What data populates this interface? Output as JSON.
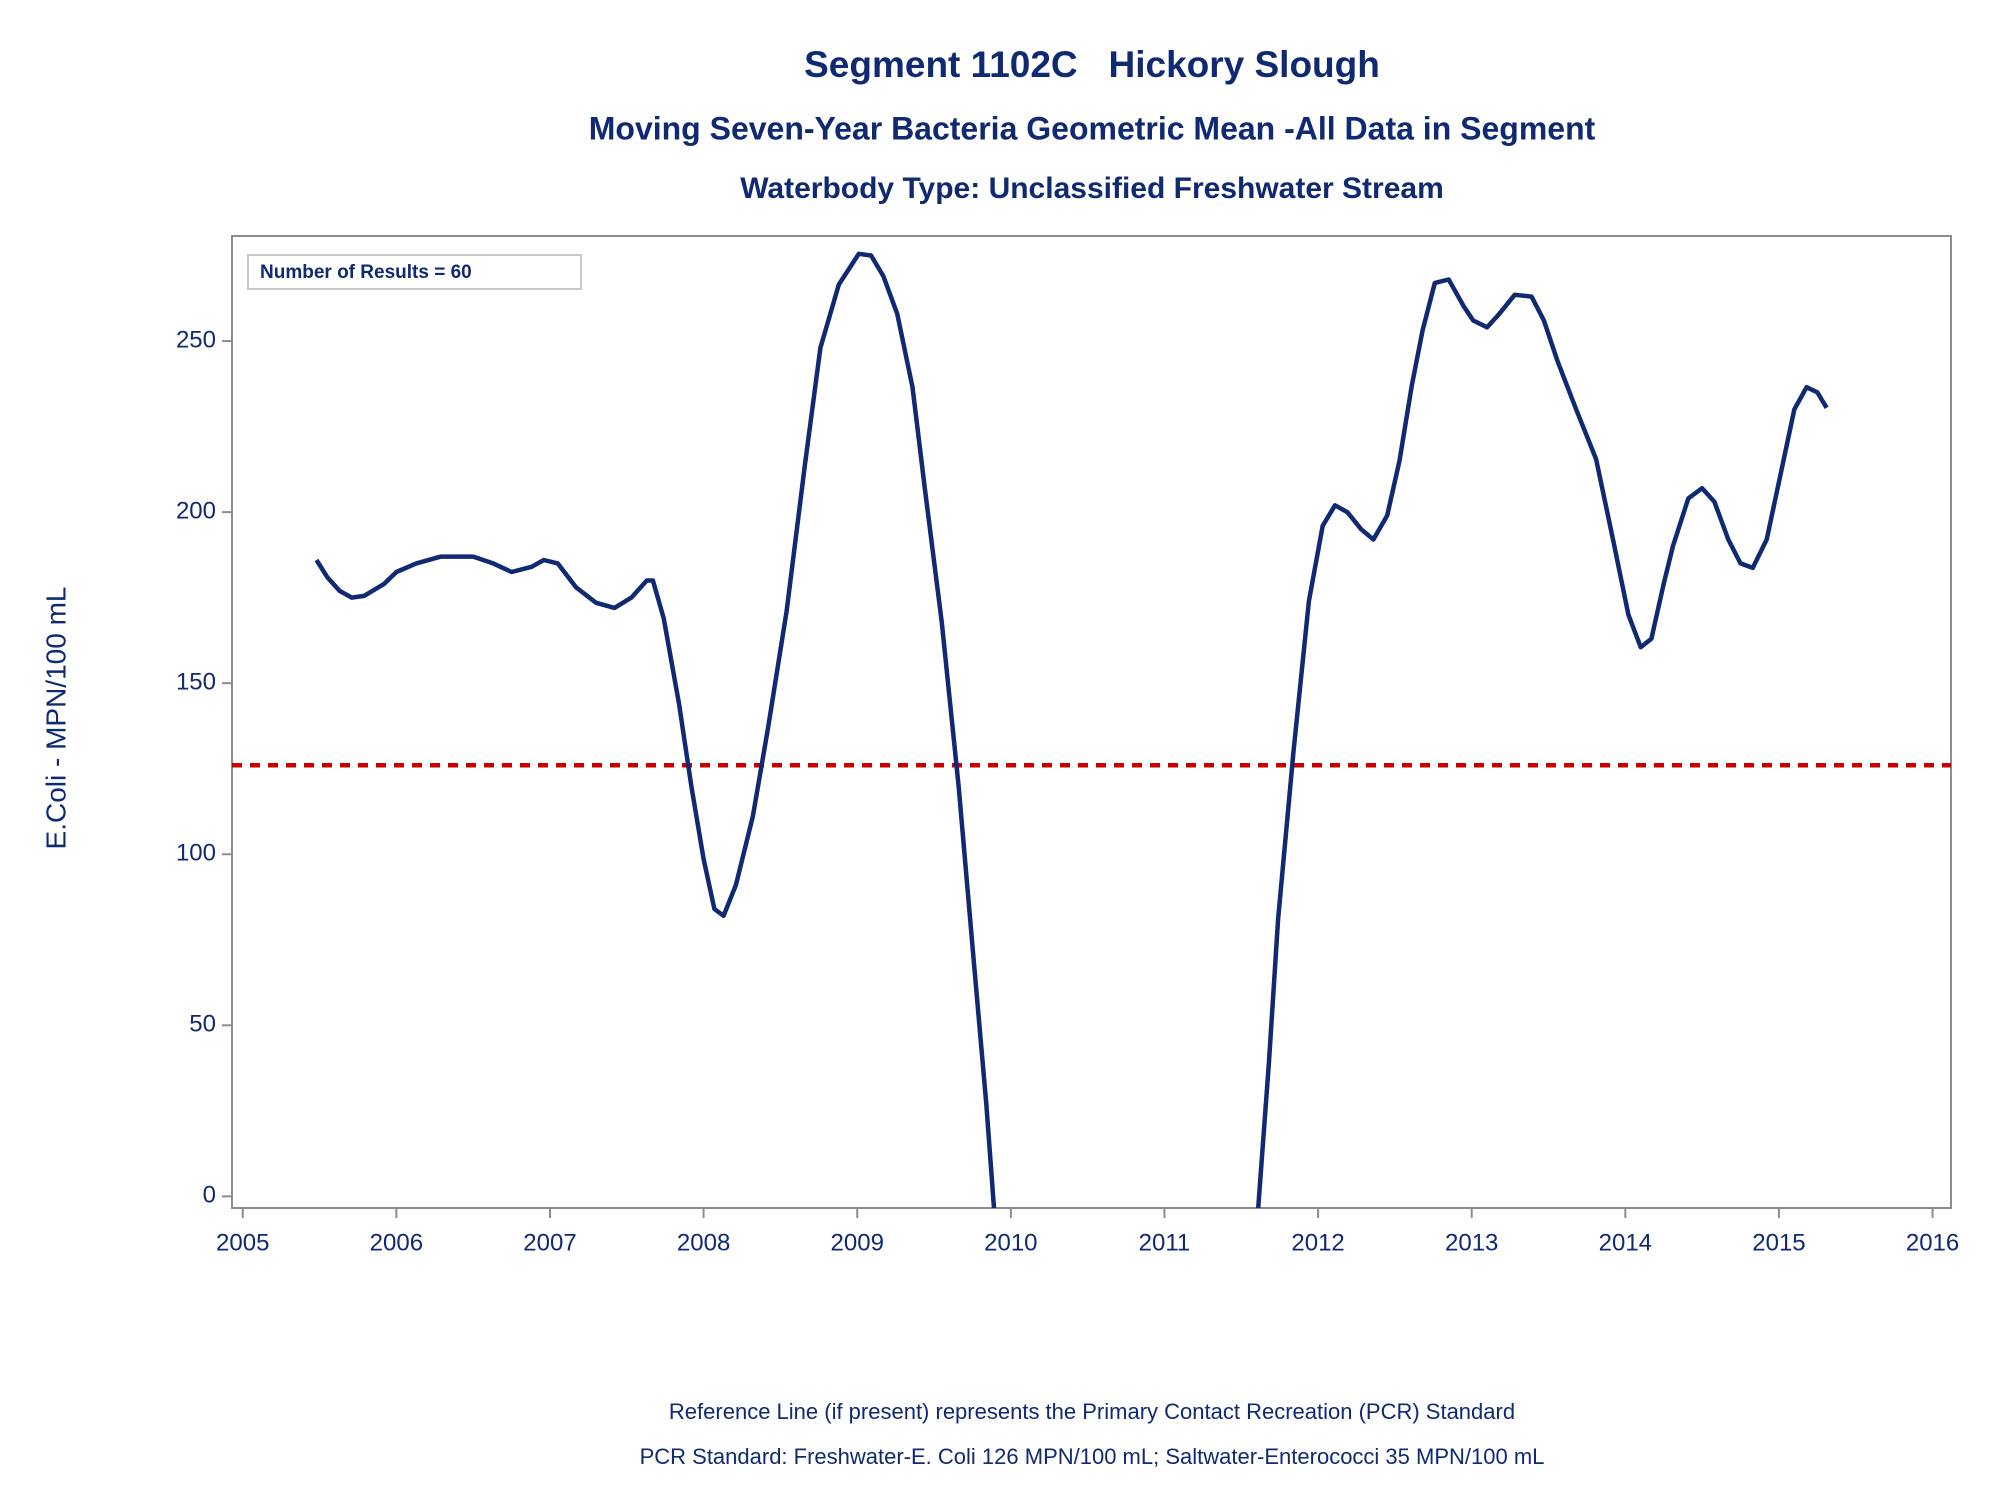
{
  "chart_data": {
    "type": "line",
    "title": "Segment 1102C   Hickory Slough",
    "subtitle": "Moving Seven-Year Bacteria Geometric Mean -All Data in Segment",
    "subtitle2": "Waterbody Type: Unclassified Freshwater Stream",
    "ylabel": "E.Coli - MPN/100 mL",
    "annotation": "Number of Results = 60",
    "footnotes": [
      "Reference Line (if present) represents the Primary Contact Recreation (PCR) Standard",
      "PCR Standard: Freshwater-E. Coli 126 MPN/100 mL; Saltwater-Enterococci 35 MPN/100 mL"
    ],
    "xlim": [
      2004.93,
      2016.12
    ],
    "xticks": [
      2005,
      2006,
      2007,
      2008,
      2009,
      2010,
      2011,
      2012,
      2013,
      2014,
      2015,
      2016
    ],
    "ylim": [
      -3.4,
      280.7
    ],
    "yticks": [
      0,
      50,
      100,
      150,
      200,
      250
    ],
    "reference_line": {
      "value": 126,
      "color": "#cc0000"
    },
    "x": [
      2005.48,
      2005.55,
      2005.63,
      2005.71,
      2005.79,
      2005.92,
      2006.0,
      2006.13,
      2006.29,
      2006.5,
      2006.63,
      2006.75,
      2006.88,
      2006.96,
      2007.05,
      2007.17,
      2007.3,
      2007.42,
      2007.53,
      2007.63,
      2007.67,
      2007.74,
      2007.84,
      2007.92,
      2008.0,
      2008.07,
      2008.13,
      2008.21,
      2008.32,
      2008.42,
      2008.54,
      2008.66,
      2008.76,
      2008.88,
      2009.01,
      2009.09,
      2009.17,
      2009.26,
      2009.36,
      2009.44,
      2009.55,
      2009.66,
      2009.76,
      2009.84,
      2009.89,
      2010.75,
      2011.61,
      2011.68,
      2011.74,
      2011.84,
      2011.94,
      2012.03,
      2012.11,
      2012.19,
      2012.28,
      2012.36,
      2012.45,
      2012.53,
      2012.61,
      2012.68,
      2012.76,
      2012.85,
      2012.95,
      2013.01,
      2013.1,
      2013.18,
      2013.28,
      2013.39,
      2013.47,
      2013.56,
      2013.68,
      2013.81,
      2013.92,
      2014.02,
      2014.1,
      2014.17,
      2014.25,
      2014.31,
      2014.41,
      2014.5,
      2014.58,
      2014.67,
      2014.75,
      2014.83,
      2014.92,
      2015.02,
      2015.1,
      2015.18,
      2015.25,
      2015.31
    ],
    "series": [
      {
        "name": "Geometric Mean",
        "color": "#0f2a72",
        "values": [
          186,
          181,
          177,
          175,
          175.5,
          179,
          182.5,
          185,
          187,
          187,
          185,
          182.5,
          184,
          186,
          185,
          178,
          173.5,
          172,
          175,
          180,
          180,
          169,
          144,
          120,
          98.6,
          84,
          82,
          91,
          111,
          137,
          171,
          214,
          248,
          266.5,
          275.5,
          275,
          269,
          258,
          236.5,
          207,
          168,
          120,
          68,
          27,
          -3.4,
          null,
          -3.4,
          39,
          81,
          130,
          174,
          196,
          202,
          200,
          195,
          192,
          199,
          215,
          237,
          253,
          267,
          268,
          260,
          256,
          254,
          258,
          263.5,
          263,
          256,
          244,
          230,
          215.5,
          192,
          170,
          160.5,
          163,
          179,
          190,
          204,
          207,
          203,
          192,
          185,
          183.7,
          192,
          213,
          230,
          236.5,
          235,
          230.5
        ]
      }
    ]
  }
}
